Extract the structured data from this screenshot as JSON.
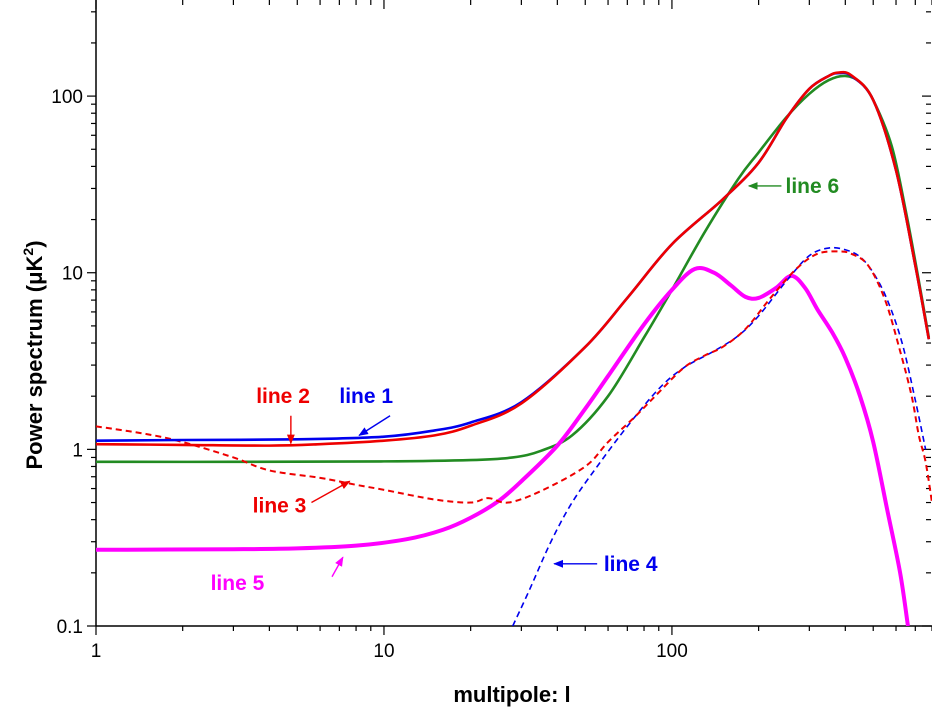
{
  "chart_data": {
    "type": "line",
    "title": "",
    "xlabel": "multipole: l",
    "ylabel": "Power spectrum (μK",
    "ylabel_sup": "2",
    "ylabel_close": ")",
    "xscale": "log",
    "yscale": "log",
    "xlim": [
      1,
      800
    ],
    "ylim": [
      0.1,
      350
    ],
    "grid": false,
    "legend": "none",
    "x_tick_labels": [
      {
        "value": 1,
        "label": "1"
      },
      {
        "value": 10,
        "label": "10"
      },
      {
        "value": 100,
        "label": "100"
      }
    ],
    "y_tick_labels": [
      {
        "value": 0.1,
        "label": "0.1"
      },
      {
        "value": 1,
        "label": "1"
      },
      {
        "value": 10,
        "label": "10"
      },
      {
        "value": 100,
        "label": "100"
      }
    ],
    "series": [
      {
        "name": "line 1",
        "color": "#0000ee",
        "style": "solid",
        "width": 2.6,
        "points": [
          [
            1,
            1.12
          ],
          [
            2,
            1.13
          ],
          [
            5,
            1.14
          ],
          [
            10,
            1.18
          ],
          [
            15,
            1.28
          ],
          [
            20,
            1.42
          ],
          [
            30,
            1.85
          ],
          [
            50,
            3.8
          ],
          [
            70,
            7.2
          ],
          [
            100,
            14.5
          ],
          [
            150,
            26
          ],
          [
            200,
            42
          ],
          [
            250,
            75
          ],
          [
            300,
            110
          ],
          [
            350,
            130
          ],
          [
            380,
            135
          ],
          [
            420,
            130
          ],
          [
            500,
            95
          ],
          [
            600,
            38
          ],
          [
            700,
            11
          ],
          [
            780,
            4.2
          ]
        ]
      },
      {
        "name": "line 2",
        "color": "#ee0000",
        "style": "solid",
        "width": 2.6,
        "points": [
          [
            1,
            1.07
          ],
          [
            2,
            1.06
          ],
          [
            4,
            1.05
          ],
          [
            6,
            1.07
          ],
          [
            10,
            1.12
          ],
          [
            15,
            1.2
          ],
          [
            20,
            1.36
          ],
          [
            30,
            1.82
          ],
          [
            50,
            3.8
          ],
          [
            70,
            7.2
          ],
          [
            100,
            14.5
          ],
          [
            150,
            26
          ],
          [
            200,
            42
          ],
          [
            250,
            75
          ],
          [
            300,
            110
          ],
          [
            350,
            130
          ],
          [
            380,
            136
          ],
          [
            420,
            131
          ],
          [
            500,
            95
          ],
          [
            600,
            38
          ],
          [
            700,
            11
          ],
          [
            780,
            4.2
          ]
        ]
      },
      {
        "name": "line 3",
        "color": "#ee0000",
        "style": "dashed",
        "width": 2,
        "points": [
          [
            1,
            1.35
          ],
          [
            1.5,
            1.22
          ],
          [
            2,
            1.1
          ],
          [
            3,
            0.9
          ],
          [
            4,
            0.76
          ],
          [
            6,
            0.69
          ],
          [
            8,
            0.63
          ],
          [
            10,
            0.59
          ],
          [
            15,
            0.52
          ],
          [
            20,
            0.5
          ],
          [
            23,
            0.53
          ],
          [
            27,
            0.5
          ],
          [
            35,
            0.58
          ],
          [
            50,
            0.8
          ],
          [
            60,
            1.1
          ],
          [
            75,
            1.55
          ],
          [
            90,
            2.1
          ],
          [
            110,
            2.9
          ],
          [
            130,
            3.4
          ],
          [
            150,
            3.8
          ],
          [
            180,
            4.8
          ],
          [
            220,
            7.2
          ],
          [
            270,
            10.5
          ],
          [
            320,
            12.8
          ],
          [
            380,
            13.2
          ],
          [
            420,
            12.8
          ],
          [
            480,
            11
          ],
          [
            550,
            7
          ],
          [
            620,
            3.6
          ],
          [
            680,
            2
          ],
          [
            720,
            1.2
          ],
          [
            760,
            0.85
          ],
          [
            800,
            0.5
          ]
        ]
      },
      {
        "name": "line 4",
        "color": "#0000ee",
        "style": "dashed",
        "width": 1.6,
        "points": [
          [
            28,
            0.1
          ],
          [
            32,
            0.16
          ],
          [
            38,
            0.3
          ],
          [
            45,
            0.5
          ],
          [
            55,
            0.8
          ],
          [
            70,
            1.35
          ],
          [
            90,
            2.2
          ],
          [
            110,
            2.9
          ],
          [
            140,
            3.6
          ],
          [
            170,
            4.4
          ],
          [
            200,
            5.7
          ],
          [
            250,
            9
          ],
          [
            300,
            12.5
          ],
          [
            350,
            13.8
          ],
          [
            400,
            13.5
          ],
          [
            450,
            12.3
          ],
          [
            500,
            10
          ],
          [
            560,
            7
          ],
          [
            630,
            4
          ],
          [
            700,
            1.9
          ],
          [
            760,
            1
          ]
        ]
      },
      {
        "name": "line 5",
        "color": "#ff00ff",
        "style": "solid",
        "width": 4,
        "points": [
          [
            1,
            0.27
          ],
          [
            3,
            0.272
          ],
          [
            5,
            0.275
          ],
          [
            8,
            0.285
          ],
          [
            12,
            0.31
          ],
          [
            16,
            0.35
          ],
          [
            20,
            0.41
          ],
          [
            25,
            0.51
          ],
          [
            30,
            0.66
          ],
          [
            40,
            1.05
          ],
          [
            50,
            1.7
          ],
          [
            60,
            2.6
          ],
          [
            80,
            5.1
          ],
          [
            100,
            8
          ],
          [
            120,
            10.5
          ],
          [
            140,
            10
          ],
          [
            160,
            8.5
          ],
          [
            180,
            7.3
          ],
          [
            200,
            7.2
          ],
          [
            230,
            8.2
          ],
          [
            260,
            9.6
          ],
          [
            290,
            8.2
          ],
          [
            320,
            6.2
          ],
          [
            360,
            4.6
          ],
          [
            400,
            3.3
          ],
          [
            450,
            2
          ],
          [
            500,
            1.1
          ],
          [
            560,
            0.45
          ],
          [
            620,
            0.2
          ],
          [
            660,
            0.1
          ]
        ]
      },
      {
        "name": "line 6",
        "color": "#228b22",
        "style": "solid",
        "width": 2.6,
        "points": [
          [
            1,
            0.85
          ],
          [
            3,
            0.85
          ],
          [
            10,
            0.855
          ],
          [
            20,
            0.87
          ],
          [
            28,
            0.9
          ],
          [
            35,
            0.98
          ],
          [
            45,
            1.2
          ],
          [
            60,
            2
          ],
          [
            80,
            4.3
          ],
          [
            100,
            8
          ],
          [
            130,
            17
          ],
          [
            170,
            34
          ],
          [
            200,
            48
          ],
          [
            250,
            76
          ],
          [
            300,
            103
          ],
          [
            350,
            123
          ],
          [
            400,
            130
          ],
          [
            450,
            120
          ],
          [
            500,
            95
          ],
          [
            580,
            52
          ],
          [
            650,
            22
          ],
          [
            720,
            9
          ],
          [
            780,
            4.3
          ]
        ]
      }
    ],
    "annotations": [
      {
        "label": "line 1",
        "color": "#0000ee",
        "tx": 7,
        "ty": 2.0,
        "ax": 10.5,
        "ay": 1.55,
        "hx": 8.2,
        "hy": 1.2
      },
      {
        "label": "line 2",
        "color": "#ee0000",
        "tx": 3.6,
        "ty": 2.0,
        "ax": 4.75,
        "ay": 1.55,
        "hx": 4.75,
        "hy": 1.08
      },
      {
        "label": "line 3",
        "color": "#ee0000",
        "tx": 3.5,
        "ty": 0.48,
        "ax": 5.6,
        "ay": 0.5,
        "hx": 7.6,
        "hy": 0.66
      },
      {
        "label": "line 4",
        "color": "#0000ee",
        "tx": 58,
        "ty": 0.225,
        "ax": 55,
        "ay": 0.225,
        "hx": 39,
        "hy": 0.225
      },
      {
        "label": "line 5",
        "color": "#ff00ff",
        "tx": 2.5,
        "ty": 0.175,
        "ax": 6.6,
        "ay": 0.19,
        "hx": 7.2,
        "hy": 0.245
      },
      {
        "label": "line 6",
        "color": "#228b22",
        "tx": 248,
        "ty": 31,
        "ax": 240,
        "ay": 31,
        "hx": 185,
        "hy": 31
      }
    ]
  }
}
